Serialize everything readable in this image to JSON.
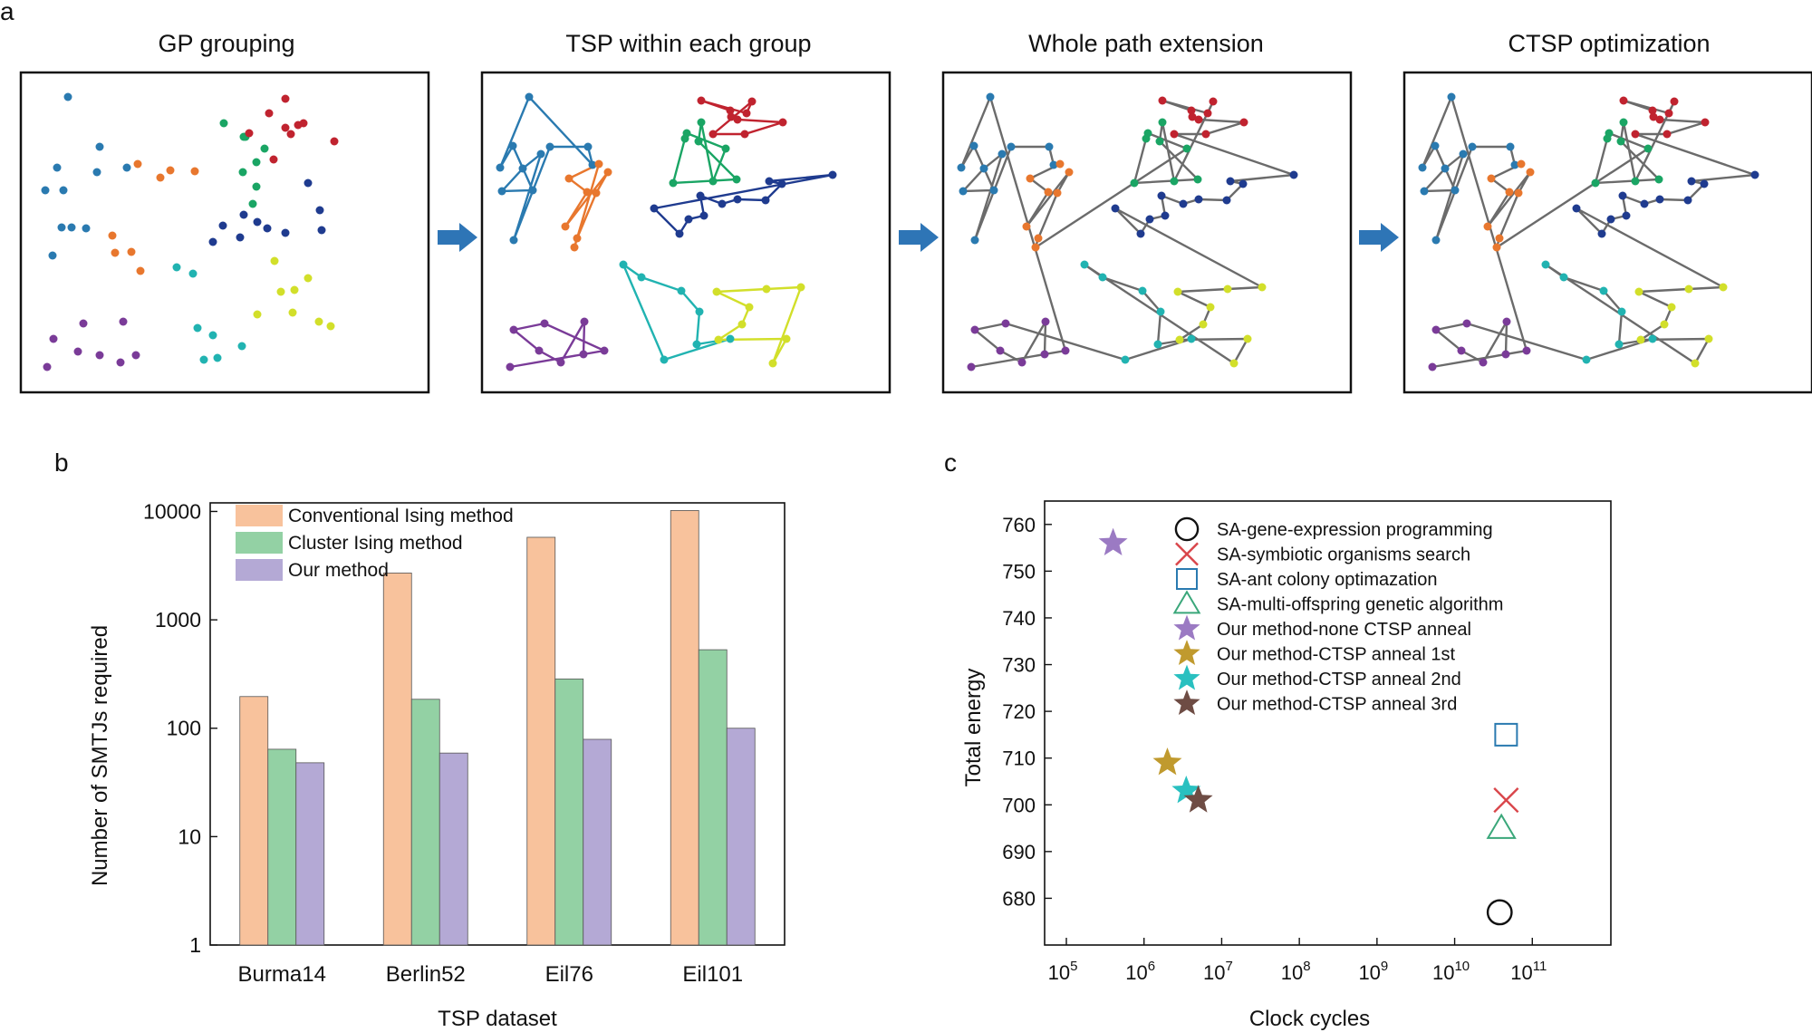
{
  "figure": {
    "panel_labels": {
      "a": "a",
      "b": "b",
      "c": "c"
    },
    "panel_a": {
      "titles": [
        "GP grouping",
        "TSP within each group",
        "Whole path extension",
        "CTSP optimization"
      ],
      "arrow_color": "#2e75b6",
      "path_color": "#6b6b6b",
      "group_colors": {
        "blue": "#2a7ab0",
        "orange": "#e8772e",
        "green": "#1aa564",
        "red": "#c0232f",
        "navy": "#1f3b8f",
        "teal": "#21b3b1",
        "yellow": "#d2df2a",
        "purple": "#7a3b98"
      }
    }
  },
  "chart_data": [
    {
      "id": "b",
      "type": "bar",
      "scale": "log",
      "xlabel": "TSP dataset",
      "ylabel": "Number of SMTJs required",
      "categories": [
        "Burma14",
        "Berlin52",
        "Eil76",
        "Eil101"
      ],
      "ylim": [
        1,
        12000
      ],
      "yticks": [
        {
          "value": 1,
          "label": "1"
        },
        {
          "value": 10,
          "label": "10"
        },
        {
          "value": 100,
          "label": "100"
        },
        {
          "value": 1000,
          "label": "1000"
        },
        {
          "value": 10000,
          "label": "10000"
        }
      ],
      "legend_position": "top-left",
      "series": [
        {
          "name": "Conventional Ising method",
          "color": "#f8c29c",
          "values": [
            196,
            2704,
            5776,
            10201
          ]
        },
        {
          "name": "Cluster Ising method",
          "color": "#93d1a4",
          "values": [
            64,
            185,
            285,
            530
          ]
        },
        {
          "name": "Our method",
          "color": "#b4a9d5",
          "values": [
            48,
            59,
            79,
            100
          ]
        }
      ]
    },
    {
      "id": "c",
      "type": "scatter",
      "xlabel": "Clock cycles",
      "ylabel": "Total energy",
      "xscale": "log",
      "xlim_exp": [
        5,
        12
      ],
      "ylim": [
        670,
        765
      ],
      "xticks": [
        {
          "base": "10",
          "exp": "5"
        },
        {
          "base": "10",
          "exp": "6"
        },
        {
          "base": "10",
          "exp": "7"
        },
        {
          "base": "10",
          "exp": "8"
        },
        {
          "base": "10",
          "exp": "9"
        },
        {
          "base": "10",
          "exp": "10"
        },
        {
          "base": "10",
          "exp": "11"
        }
      ],
      "yticks": [
        "680",
        "690",
        "700",
        "710",
        "720",
        "730",
        "740",
        "750",
        "760"
      ],
      "legend_position": "top-right",
      "series": [
        {
          "name": "SA-gene-expression programming",
          "marker": "circle",
          "color": "#111111",
          "x": 38000000000,
          "y": 677
        },
        {
          "name": "SA-symbiotic organisms search",
          "marker": "x",
          "color": "#d9454a",
          "x": 46000000000,
          "y": 701
        },
        {
          "name": "SA-ant colony optimazation",
          "marker": "square",
          "color": "#2a7ab0",
          "x": 46000000000,
          "y": 715
        },
        {
          "name": "SA-multi-offspring genetic algorithm",
          "marker": "triangle",
          "color": "#3aa77a",
          "x": 40000000000,
          "y": 695
        },
        {
          "name": "Our method-none CTSP anneal",
          "marker": "star",
          "color": "#9b7ac3",
          "x": 400000,
          "y": 756
        },
        {
          "name": "Our method-CTSP anneal 1st",
          "marker": "star",
          "color": "#c09a2e",
          "x": 2000000,
          "y": 709
        },
        {
          "name": "Our method-CTSP anneal 2nd",
          "marker": "star",
          "color": "#29c0c0",
          "x": 3500000,
          "y": 703
        },
        {
          "name": "Our method-CTSP anneal 3rd",
          "marker": "star",
          "color": "#6e4c44",
          "x": 5000000,
          "y": 701
        }
      ]
    }
  ]
}
